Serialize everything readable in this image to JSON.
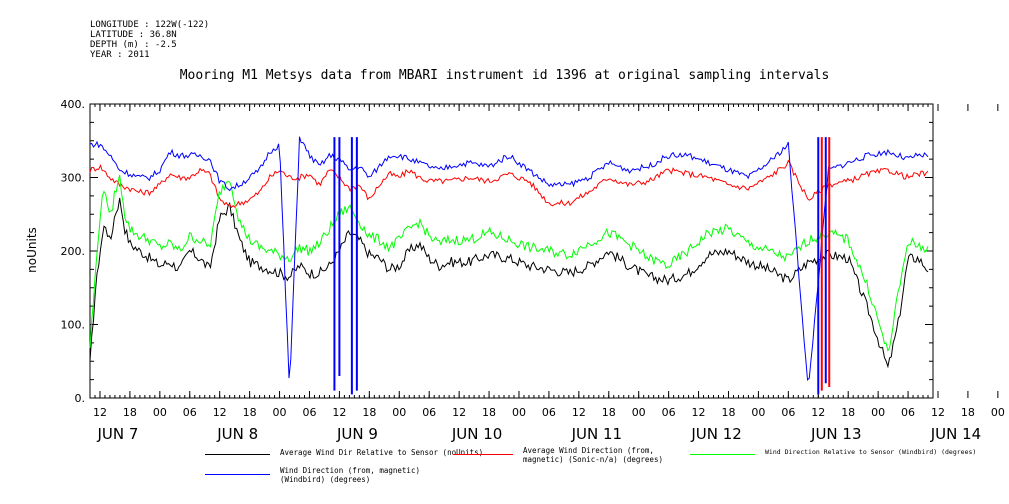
{
  "metadata_lines": [
    "LONGITUDE : 122W(-122)",
    "LATITUDE : 36.8N",
    "DEPTH (m) : -2.5",
    "YEAR : 2011"
  ],
  "chart_data": {
    "type": "line",
    "title": "Mooring M1 Metsys data from MBARI instrument id 1396 at original sampling intervals",
    "ylabel": "noUnits",
    "xlabel": "",
    "ylim": [
      0,
      400
    ],
    "yticks": [
      0,
      100,
      200,
      300,
      400
    ],
    "ytick_labels": [
      "0.",
      "100.",
      "200.",
      "300.",
      "400."
    ],
    "xlim_hours_label": "June 7 10:00 to June 14 10:00, 2011",
    "hour_ticks": [
      "12",
      "18",
      "00",
      "06",
      "12",
      "18",
      "00",
      "06",
      "12",
      "18",
      "00",
      "06",
      "12",
      "18",
      "00",
      "06",
      "12",
      "18",
      "00",
      "06",
      "12",
      "18",
      "00",
      "06",
      "12",
      "18",
      "00",
      "06",
      "12",
      "18",
      "00",
      "06",
      "12",
      "18",
      "00",
      "06"
    ],
    "day_labels": [
      "JUN  7",
      "JUN  8",
      "JUN  9",
      "JUN 10",
      "JUN 11",
      "JUN 12",
      "JUN 13",
      "JUN 14"
    ],
    "grid": false,
    "legend_position": "bottom",
    "series": [
      {
        "name": "Average Wind Dir Relative to Sensor (noUnits)",
        "color": "#000000",
        "x_hours": [
          0,
          1,
          2,
          3,
          4,
          5,
          6,
          7,
          8,
          10,
          12,
          14,
          16,
          18,
          20,
          22,
          24,
          26,
          28,
          30,
          32,
          34,
          36,
          38,
          40,
          42,
          44,
          46,
          48,
          50,
          52,
          54,
          56,
          58,
          60,
          62,
          64,
          66,
          68,
          70,
          72,
          76,
          80,
          84,
          88,
          92,
          96,
          100,
          104,
          108,
          112,
          116,
          120,
          124,
          128,
          132,
          136,
          140,
          144,
          148,
          152,
          156,
          160,
          162,
          164,
          166,
          168
        ],
        "values": [
          45,
          140,
          200,
          240,
          210,
          250,
          270,
          230,
          210,
          200,
          190,
          180,
          185,
          175,
          200,
          190,
          175,
          245,
          260,
          215,
          185,
          180,
          175,
          170,
          165,
          180,
          170,
          170,
          180,
          200,
          225,
          215,
          195,
          190,
          175,
          180,
          200,
          210,
          190,
          180,
          185,
          185,
          195,
          190,
          180,
          175,
          170,
          180,
          200,
          180,
          165,
          160,
          170,
          195,
          200,
          185,
          175,
          160,
          185,
          195,
          190,
          120,
          40,
          100,
          190,
          190,
          175
        ]
      },
      {
        "name": "Average Wind Direction (from, magnetic) (Sonic-n/a) (degrees)",
        "color": "#ff0000",
        "x_hours": [
          0,
          2,
          4,
          6,
          8,
          10,
          12,
          14,
          16,
          18,
          20,
          22,
          24,
          26,
          28,
          30,
          32,
          34,
          36,
          38,
          40,
          42,
          44,
          46,
          48,
          50,
          52,
          54,
          56,
          58,
          60,
          62,
          64,
          66,
          68,
          70,
          72,
          76,
          80,
          84,
          88,
          92,
          96,
          100,
          104,
          108,
          112,
          116,
          120,
          124,
          128,
          132,
          136,
          140,
          144,
          148,
          152,
          156,
          160,
          162,
          164,
          166,
          168
        ],
        "values": [
          310,
          315,
          300,
          290,
          285,
          280,
          280,
          290,
          305,
          300,
          300,
          310,
          305,
          270,
          260,
          265,
          270,
          280,
          300,
          310,
          300,
          300,
          305,
          290,
          310,
          300,
          285,
          290,
          270,
          290,
          305,
          300,
          310,
          300,
          295,
          295,
          295,
          300,
          295,
          305,
          295,
          265,
          265,
          280,
          300,
          290,
          295,
          310,
          305,
          300,
          290,
          285,
          300,
          320,
          270,
          290,
          295,
          305,
          310,
          305,
          300,
          305,
          305
        ]
      },
      {
        "name": "Wind Direction Relative to Sensor (Windbird) (degrees)",
        "color": "#00ff00",
        "x_hours": [
          0,
          1,
          2,
          3,
          4,
          5,
          6,
          7,
          8,
          10,
          12,
          14,
          16,
          18,
          20,
          22,
          24,
          26,
          28,
          30,
          32,
          34,
          36,
          38,
          40,
          42,
          44,
          46,
          48,
          50,
          52,
          54,
          56,
          58,
          60,
          62,
          64,
          66,
          68,
          70,
          72,
          76,
          80,
          84,
          88,
          92,
          96,
          100,
          104,
          108,
          112,
          116,
          120,
          124,
          128,
          132,
          136,
          140,
          144,
          148,
          152,
          156,
          160,
          162,
          164,
          166,
          168
        ],
        "values": [
          70,
          160,
          250,
          290,
          240,
          280,
          300,
          250,
          230,
          220,
          215,
          205,
          210,
          200,
          220,
          215,
          205,
          280,
          300,
          240,
          215,
          205,
          200,
          195,
          190,
          205,
          200,
          210,
          230,
          250,
          260,
          240,
          220,
          215,
          205,
          215,
          230,
          240,
          220,
          210,
          215,
          215,
          225,
          215,
          205,
          200,
          195,
          210,
          225,
          210,
          190,
          180,
          200,
          225,
          230,
          210,
          200,
          190,
          215,
          225,
          215,
          150,
          60,
          140,
          215,
          205,
          205
        ]
      },
      {
        "name": "Wind Direction (from, magnetic) (Windbird) (degrees)",
        "color": "#0000ff",
        "x_hours": [
          0,
          2,
          4,
          6,
          8,
          10,
          12,
          14,
          16,
          18,
          20,
          22,
          24,
          26,
          28,
          30,
          32,
          34,
          36,
          38,
          40,
          42,
          44,
          46,
          48,
          50,
          52,
          54,
          56,
          58,
          60,
          62,
          64,
          66,
          68,
          70,
          72,
          76,
          80,
          84,
          88,
          92,
          96,
          100,
          104,
          108,
          112,
          116,
          120,
          124,
          128,
          132,
          136,
          140,
          144,
          148,
          152,
          156,
          160,
          162,
          164,
          166,
          168
        ],
        "values": [
          345,
          345,
          330,
          310,
          305,
          300,
          300,
          310,
          335,
          330,
          330,
          330,
          325,
          295,
          285,
          290,
          300,
          310,
          335,
          345,
          10,
          355,
          330,
          315,
          330,
          325,
          310,
          315,
          300,
          315,
          330,
          330,
          325,
          320,
          315,
          310,
          315,
          320,
          315,
          330,
          310,
          290,
          290,
          300,
          320,
          310,
          315,
          330,
          330,
          320,
          310,
          300,
          320,
          345,
          10,
          310,
          320,
          330,
          335,
          330,
          325,
          330,
          330
        ]
      }
    ],
    "dropouts": [
      {
        "x_hours": 49.0,
        "series": [
          "#0000ff"
        ],
        "low": 10
      },
      {
        "x_hours": 50.0,
        "series": [
          "#0000ff"
        ],
        "low": 30
      },
      {
        "x_hours": 52.5,
        "series": [
          "#0000ff"
        ],
        "low": 5
      },
      {
        "x_hours": 53.5,
        "series": [
          "#0000ff"
        ],
        "low": 10
      },
      {
        "x_hours": 146.0,
        "series": [
          "#0000ff"
        ],
        "low": 5
      },
      {
        "x_hours": 146.7,
        "series": [
          "#ff0000"
        ],
        "low": 10
      },
      {
        "x_hours": 147.5,
        "series": [
          "#0000ff"
        ],
        "low": 20
      },
      {
        "x_hours": 148.2,
        "series": [
          "#ff0000"
        ],
        "low": 15
      }
    ]
  }
}
